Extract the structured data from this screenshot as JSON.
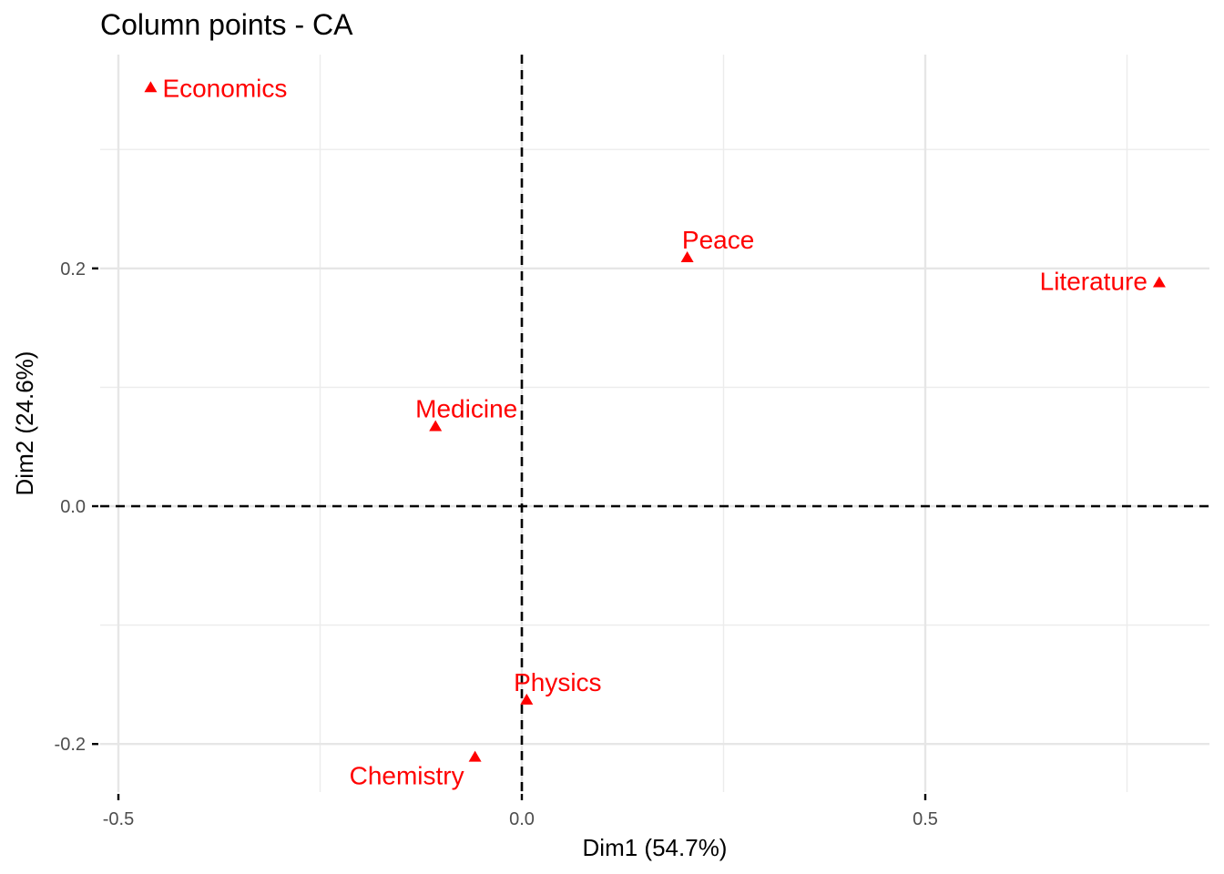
{
  "chart_data": {
    "type": "scatter",
    "title": "Column points - CA",
    "xlabel": "Dim1 (54.7%)",
    "ylabel": "Dim2 (24.6%)",
    "xlim": [
      -0.5,
      0.85
    ],
    "ylim": [
      -0.23,
      0.375
    ],
    "x_ticks": [
      -0.5,
      0.0,
      0.5
    ],
    "x_tick_labels": [
      "-0.5",
      "0.0",
      "0.5"
    ],
    "y_ticks": [
      -0.2,
      0.0,
      0.2
    ],
    "y_tick_labels": [
      "-0.2",
      "0.0",
      "0.2"
    ],
    "x_minor": [
      -0.25,
      0.25,
      0.75
    ],
    "y_minor": [
      -0.1,
      0.1,
      0.3
    ],
    "grid": true,
    "reference_lines": {
      "x": 0,
      "y": 0,
      "style": "dashed"
    },
    "marker": "triangle",
    "point_color": "#ff0000",
    "points": [
      {
        "label": "Economics",
        "x": -0.46,
        "y": 0.352,
        "label_pos": "right"
      },
      {
        "label": "Peace",
        "x": 0.205,
        "y": 0.209,
        "label_pos": "above"
      },
      {
        "label": "Literature",
        "x": 0.79,
        "y": 0.188,
        "label_pos": "left"
      },
      {
        "label": "Medicine",
        "x": -0.107,
        "y": 0.067,
        "label_pos": "above"
      },
      {
        "label": "Physics",
        "x": 0.006,
        "y": -0.163,
        "label_pos": "above"
      },
      {
        "label": "Chemistry",
        "x": -0.058,
        "y": -0.211,
        "label_pos": "below-left"
      }
    ]
  }
}
